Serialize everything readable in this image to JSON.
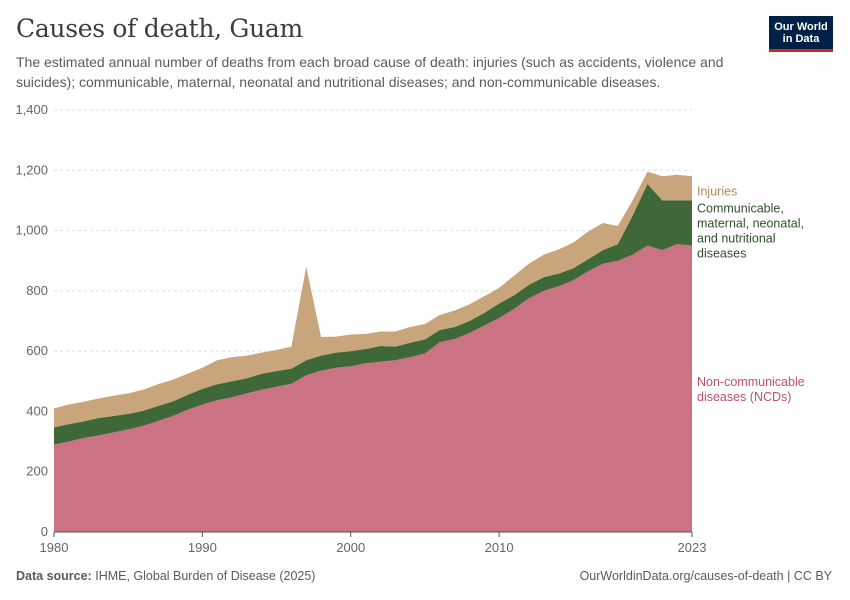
{
  "header": {
    "title": "Causes of death, Guam",
    "subtitle": "The estimated annual number of deaths from each broad cause of death: injuries (such as accidents, violence and suicides); communicable, maternal, neonatal and nutritional diseases; and non-communicable diseases.",
    "logo_line1": "Our World",
    "logo_line2": "in Data"
  },
  "footer": {
    "source_label": "Data source:",
    "source_text": "IHME, Global Burden of Disease (2025)",
    "url_text": "OurWorldinData.org/causes-of-death | CC BY"
  },
  "colors": {
    "ncd": "#cc7383",
    "communicable": "#3f6838",
    "injuries": "#c8a57a",
    "ncd_label": "#c0506a",
    "communicable_label": "#2f5228",
    "injuries_label": "#b8885a",
    "grid": "#dddddd",
    "axis": "#555555"
  },
  "chart_data": {
    "type": "area",
    "stacked": true,
    "x": [
      1980,
      1981,
      1982,
      1983,
      1984,
      1985,
      1986,
      1987,
      1988,
      1989,
      1990,
      1991,
      1992,
      1993,
      1994,
      1995,
      1996,
      1997,
      1998,
      1999,
      2000,
      2001,
      2002,
      2003,
      2004,
      2005,
      2006,
      2007,
      2008,
      2009,
      2010,
      2011,
      2012,
      2013,
      2014,
      2015,
      2016,
      2017,
      2018,
      2019,
      2020,
      2021,
      2022,
      2023
    ],
    "x_ticks": [
      1980,
      1990,
      2000,
      2010,
      2023
    ],
    "y_ticks": [
      0,
      200,
      400,
      600,
      800,
      1000,
      1200,
      1400
    ],
    "y_tick_labels": [
      "0",
      "200",
      "400",
      "600",
      "800",
      "1,000",
      "1,200",
      "1,400"
    ],
    "ylim": [
      0,
      1400
    ],
    "grid": true,
    "series": [
      {
        "name": "Non-communicable diseases (NCDs)",
        "label_lines": [
          "Non-communicable",
          "diseases (NCDs)"
        ],
        "values": [
          290,
          300,
          312,
          320,
          330,
          340,
          352,
          368,
          385,
          405,
          423,
          437,
          447,
          460,
          472,
          482,
          492,
          520,
          535,
          545,
          550,
          560,
          565,
          570,
          580,
          592,
          630,
          640,
          660,
          685,
          710,
          740,
          775,
          800,
          815,
          835,
          865,
          890,
          900,
          920,
          950,
          935,
          955,
          950
        ]
      },
      {
        "name": "Communicable, maternal, neonatal, and nutritional diseases",
        "label_lines": [
          "Communicable,",
          "maternal, neonatal,",
          "and nutritional",
          "diseases"
        ],
        "values": [
          57,
          58,
          55,
          58,
          55,
          52,
          50,
          50,
          48,
          50,
          52,
          53,
          53,
          50,
          53,
          52,
          50,
          50,
          50,
          50,
          50,
          47,
          52,
          45,
          48,
          47,
          40,
          40,
          40,
          42,
          48,
          45,
          45,
          45,
          42,
          40,
          40,
          45,
          55,
          130,
          205,
          165,
          145,
          150
        ]
      },
      {
        "name": "Injuries",
        "label_lines": [
          "Injuries"
        ],
        "values": [
          63,
          65,
          65,
          65,
          67,
          68,
          70,
          72,
          72,
          70,
          70,
          80,
          80,
          75,
          70,
          70,
          73,
          310,
          62,
          53,
          55,
          50,
          48,
          50,
          52,
          51,
          50,
          55,
          55,
          55,
          52,
          65,
          70,
          75,
          80,
          85,
          92,
          90,
          60,
          50,
          40,
          80,
          85,
          80
        ]
      }
    ]
  }
}
